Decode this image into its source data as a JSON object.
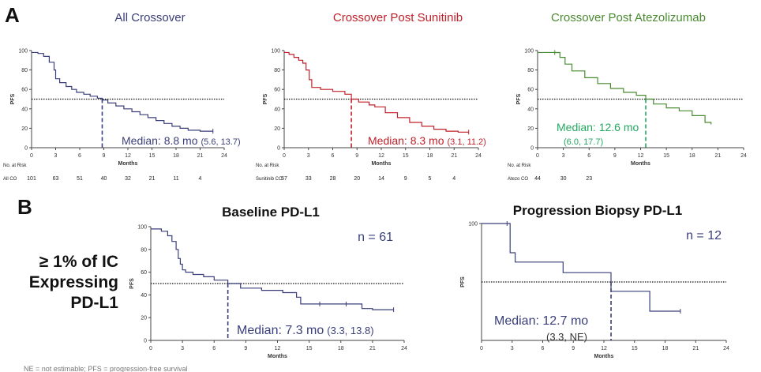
{
  "panel_labels": {
    "a": "A",
    "b": "B"
  },
  "left_annotation": {
    "line1": "≥ 1% of IC",
    "line2": "Expressing",
    "line3": "PD-L1"
  },
  "footnote": "NE = not estimable; PFS = progression-free survival",
  "colors": {
    "navy": "#3a3f7a",
    "red": "#c0202a",
    "green": "#4a8a30",
    "green_dash": "#22a860"
  },
  "chart_data": [
    {
      "type": "line",
      "title": "All Crossover",
      "xlabel": "Months",
      "ylabel": "PFS",
      "xlim": [
        0,
        24
      ],
      "ylim": [
        0,
        100
      ],
      "xticks": [
        "0",
        "3",
        "6",
        "9",
        "12",
        "15",
        "18",
        "21",
        "24"
      ],
      "yticks": [
        "0",
        "20",
        "40",
        "60",
        "80",
        "100"
      ],
      "reference_line": 50,
      "median_x": 8.8,
      "median_label": "Median: 8.8 mo",
      "ci_label": "(5.6, 13.7)",
      "risk_header": "No. at Risk",
      "risk_label": "All CO",
      "risk_values": [
        "101",
        "63",
        "51",
        "40",
        "32",
        "21",
        "11",
        "4"
      ],
      "color": "navy",
      "x": [
        0,
        0.8,
        1.5,
        2.2,
        2.8,
        3.0,
        3.5,
        4.3,
        5.0,
        5.6,
        6.5,
        7.3,
        8.2,
        8.8,
        9.5,
        10.5,
        11.5,
        12.5,
        13.5,
        14.5,
        15.5,
        16.5,
        17.5,
        18.5,
        19.5,
        21,
        22.6
      ],
      "y": [
        98,
        97,
        94,
        88,
        80,
        71,
        67,
        63,
        60,
        57,
        55,
        53,
        51,
        49,
        46,
        43,
        40,
        37,
        34,
        31,
        28,
        25,
        22,
        20,
        18,
        17,
        17
      ]
    },
    {
      "type": "line",
      "title": "Crossover Post Sunitinib",
      "xlabel": "Months",
      "ylabel": "PFS",
      "xlim": [
        0,
        24
      ],
      "ylim": [
        0,
        100
      ],
      "xticks": [
        "0",
        "3",
        "6",
        "9",
        "12",
        "15",
        "18",
        "21",
        "24"
      ],
      "yticks": [
        "0",
        "20",
        "40",
        "60",
        "80",
        "100"
      ],
      "reference_line": 50,
      "median_x": 8.3,
      "median_label": "Median: 8.3 mo",
      "ci_label": "(3.1, 11.2)",
      "risk_header": "No. at Risk",
      "risk_label": "Sunitinib CO",
      "risk_values": [
        "57",
        "33",
        "28",
        "20",
        "14",
        "9",
        "5",
        "4"
      ],
      "color": "red",
      "x": [
        0,
        0.6,
        1.2,
        1.8,
        2.3,
        2.7,
        3.1,
        3.4,
        4.5,
        6.0,
        7.5,
        8.3,
        9.2,
        10.5,
        11.2,
        12.5,
        14.0,
        15.5,
        17.0,
        18.5,
        20.0,
        21.5,
        22.8
      ],
      "y": [
        98,
        96,
        93,
        90,
        87,
        80,
        70,
        62,
        60,
        58,
        55,
        50,
        47,
        44,
        42,
        36,
        31,
        26,
        22,
        19,
        17,
        16,
        16
      ]
    },
    {
      "type": "line",
      "title": "Crossover Post Atezolizumab",
      "xlabel": "Months",
      "ylabel": "PFS",
      "xlim": [
        0,
        24
      ],
      "ylim": [
        0,
        100
      ],
      "xticks": [
        "0",
        "3",
        "6",
        "9",
        "12",
        "15",
        "18",
        "21",
        "24"
      ],
      "yticks": [
        "0",
        "20",
        "40",
        "60",
        "80",
        "100"
      ],
      "reference_line": 50,
      "median_x": 12.6,
      "median_label": "Median: 12.6 mo",
      "ci_label": "(6.0, 17.7)",
      "risk_header": "No. at Risk",
      "risk_label": "Atezo CO",
      "risk_values": [
        "44",
        "30",
        "23"
      ],
      "color": "green",
      "x": [
        0,
        2.0,
        2.6,
        3.2,
        4.0,
        5.5,
        7.0,
        8.5,
        10.0,
        11.5,
        12.6,
        13.5,
        15.0,
        16.5,
        18.0,
        19.5,
        20.2
      ],
      "y": [
        98,
        98,
        93,
        86,
        79,
        72,
        66,
        61,
        57,
        54,
        50,
        45,
        41,
        38,
        33,
        26,
        24
      ]
    },
    {
      "type": "line",
      "title": "Baseline PD-L1",
      "n_label": "n = 61",
      "xlabel": "Months",
      "ylabel": "PFS",
      "xlim": [
        0,
        24
      ],
      "ylim": [
        0,
        100
      ],
      "xticks": [
        "0",
        "3",
        "6",
        "9",
        "12",
        "15",
        "18",
        "21",
        "24"
      ],
      "yticks": [
        "0",
        "20",
        "40",
        "60",
        "80",
        "100"
      ],
      "reference_line": 50,
      "median_x": 7.3,
      "median_label": "Median: 7.3 mo",
      "ci_label": "(3.3, 13.8)",
      "color": "navy",
      "x": [
        0,
        1.0,
        1.6,
        2.0,
        2.4,
        2.6,
        2.8,
        3.0,
        3.3,
        4.0,
        5.0,
        6.0,
        7.3,
        8.5,
        10.5,
        12.5,
        13.8,
        14.2,
        16.0,
        18.5,
        20.0,
        21.0,
        23.0
      ],
      "y": [
        98,
        96,
        92,
        87,
        80,
        72,
        67,
        62,
        60,
        58,
        56,
        53,
        50,
        46,
        44,
        42,
        38,
        32,
        32,
        32,
        28,
        27,
        27
      ]
    },
    {
      "type": "line",
      "title": "Progression Biopsy PD-L1",
      "n_label": "n = 12",
      "xlabel": "Months",
      "ylabel": "PFS",
      "xlim": [
        0,
        24
      ],
      "ylim": [
        0,
        100
      ],
      "xticks": [
        "0",
        "3",
        "6",
        "9",
        "12",
        "15",
        "18",
        "21",
        "24"
      ],
      "yticks": [
        "100"
      ],
      "reference_line": 50,
      "median_x": 12.7,
      "median_label": "Median: 12.7 mo",
      "ci_label": "(3.3, NE)",
      "color": "navy",
      "x": [
        0,
        2.5,
        2.8,
        3.3,
        8.0,
        12.7,
        16.5,
        19.5
      ],
      "y": [
        100,
        100,
        75,
        67,
        58,
        42,
        25,
        25
      ]
    }
  ]
}
